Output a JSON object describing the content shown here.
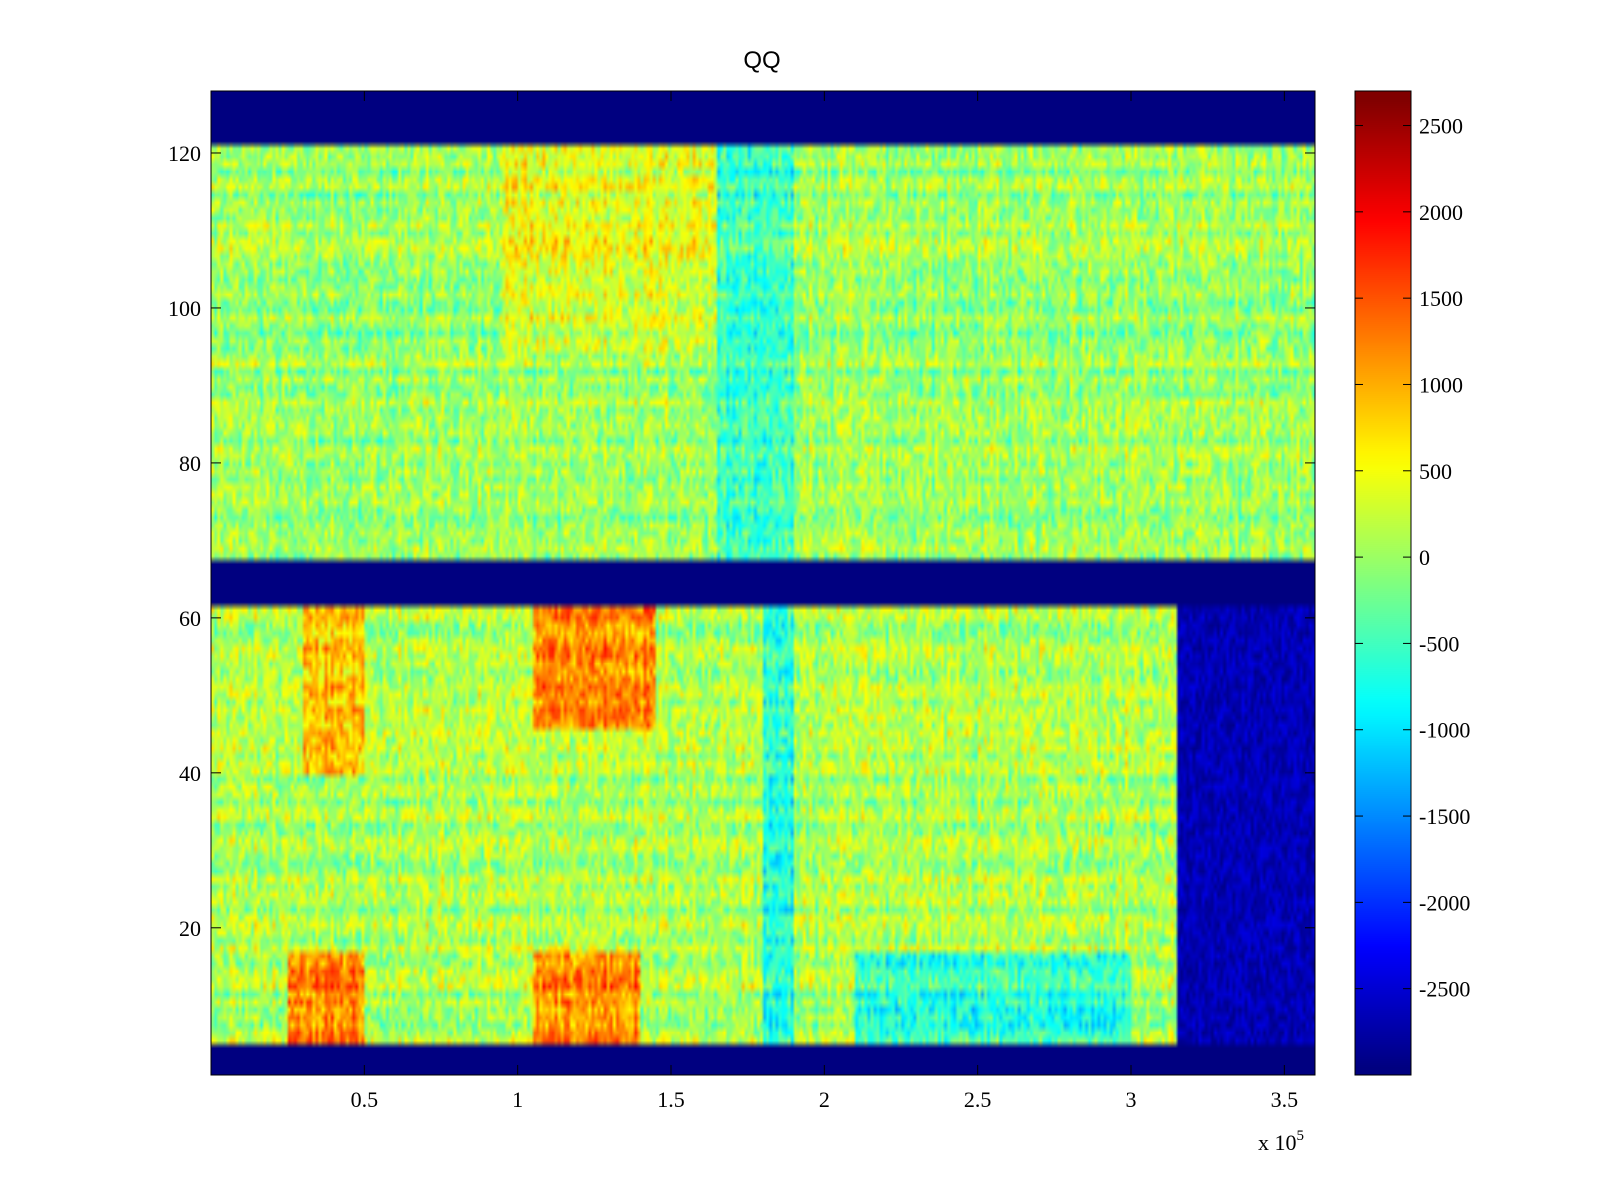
{
  "chart_data": {
    "type": "heatmap",
    "title": "QQ",
    "xlabel": "",
    "ylabel": "",
    "x_exponent_label": "x 10",
    "x_exponent": "5",
    "xlim": [
      0,
      3.6
    ],
    "ylim": [
      1,
      128
    ],
    "x_ticks": [
      0.5,
      1,
      1.5,
      2,
      2.5,
      3,
      3.5
    ],
    "x_tick_labels": [
      "0.5",
      "1",
      "1.5",
      "2",
      "2.5",
      "3",
      "3.5"
    ],
    "y_ticks": [
      20,
      40,
      60,
      80,
      100,
      120
    ],
    "y_tick_labels": [
      "20",
      "40",
      "60",
      "80",
      "100",
      "120"
    ],
    "colormap": "jet",
    "clim": [
      -3000,
      2700
    ],
    "colorbar_ticks": [
      2500,
      2000,
      1500,
      1000,
      500,
      0,
      -500,
      -1000,
      -1500,
      -2000,
      -2500
    ],
    "colorbar_tick_labels": [
      "2500",
      "2000",
      "1500",
      "1000",
      "500",
      "0",
      "-500",
      "-1000",
      "-1500",
      "-2000",
      "-2500"
    ],
    "empty_row_bands": [
      [
        1,
        4
      ],
      [
        62,
        67
      ],
      [
        122,
        128
      ]
    ],
    "regions": [
      {
        "x_range": [
          0.0,
          3.6
        ],
        "y_range": [
          68,
          121
        ],
        "mean_value": 0,
        "note": "upper block, mostly green-yellow"
      },
      {
        "x_range": [
          0.95,
          1.8
        ],
        "y_range": [
          95,
          121
        ],
        "mean_value": 400
      },
      {
        "x_range": [
          1.65,
          1.9
        ],
        "y_range": [
          68,
          121
        ],
        "mean_value": -550
      },
      {
        "x_range": [
          0.0,
          3.6
        ],
        "y_range": [
          5,
          61
        ],
        "mean_value": 100,
        "note": "lower block"
      },
      {
        "x_range": [
          0.25,
          0.5
        ],
        "y_range": [
          5,
          16
        ],
        "mean_value": 1300
      },
      {
        "x_range": [
          1.05,
          1.4
        ],
        "y_range": [
          5,
          16
        ],
        "mean_value": 1200
      },
      {
        "x_range": [
          1.05,
          1.45
        ],
        "y_range": [
          46,
          61
        ],
        "mean_value": 1200
      },
      {
        "x_range": [
          0.3,
          0.5
        ],
        "y_range": [
          40,
          61
        ],
        "mean_value": 900
      },
      {
        "x_range": [
          2.1,
          3.0
        ],
        "y_range": [
          5,
          16
        ],
        "mean_value": -600
      },
      {
        "x_range": [
          1.8,
          1.9
        ],
        "y_range": [
          5,
          61
        ],
        "mean_value": -700
      },
      {
        "x_range": [
          3.15,
          3.6
        ],
        "y_range": [
          5,
          61
        ],
        "mean_value": -2700,
        "note": "dark blue region"
      }
    ]
  }
}
